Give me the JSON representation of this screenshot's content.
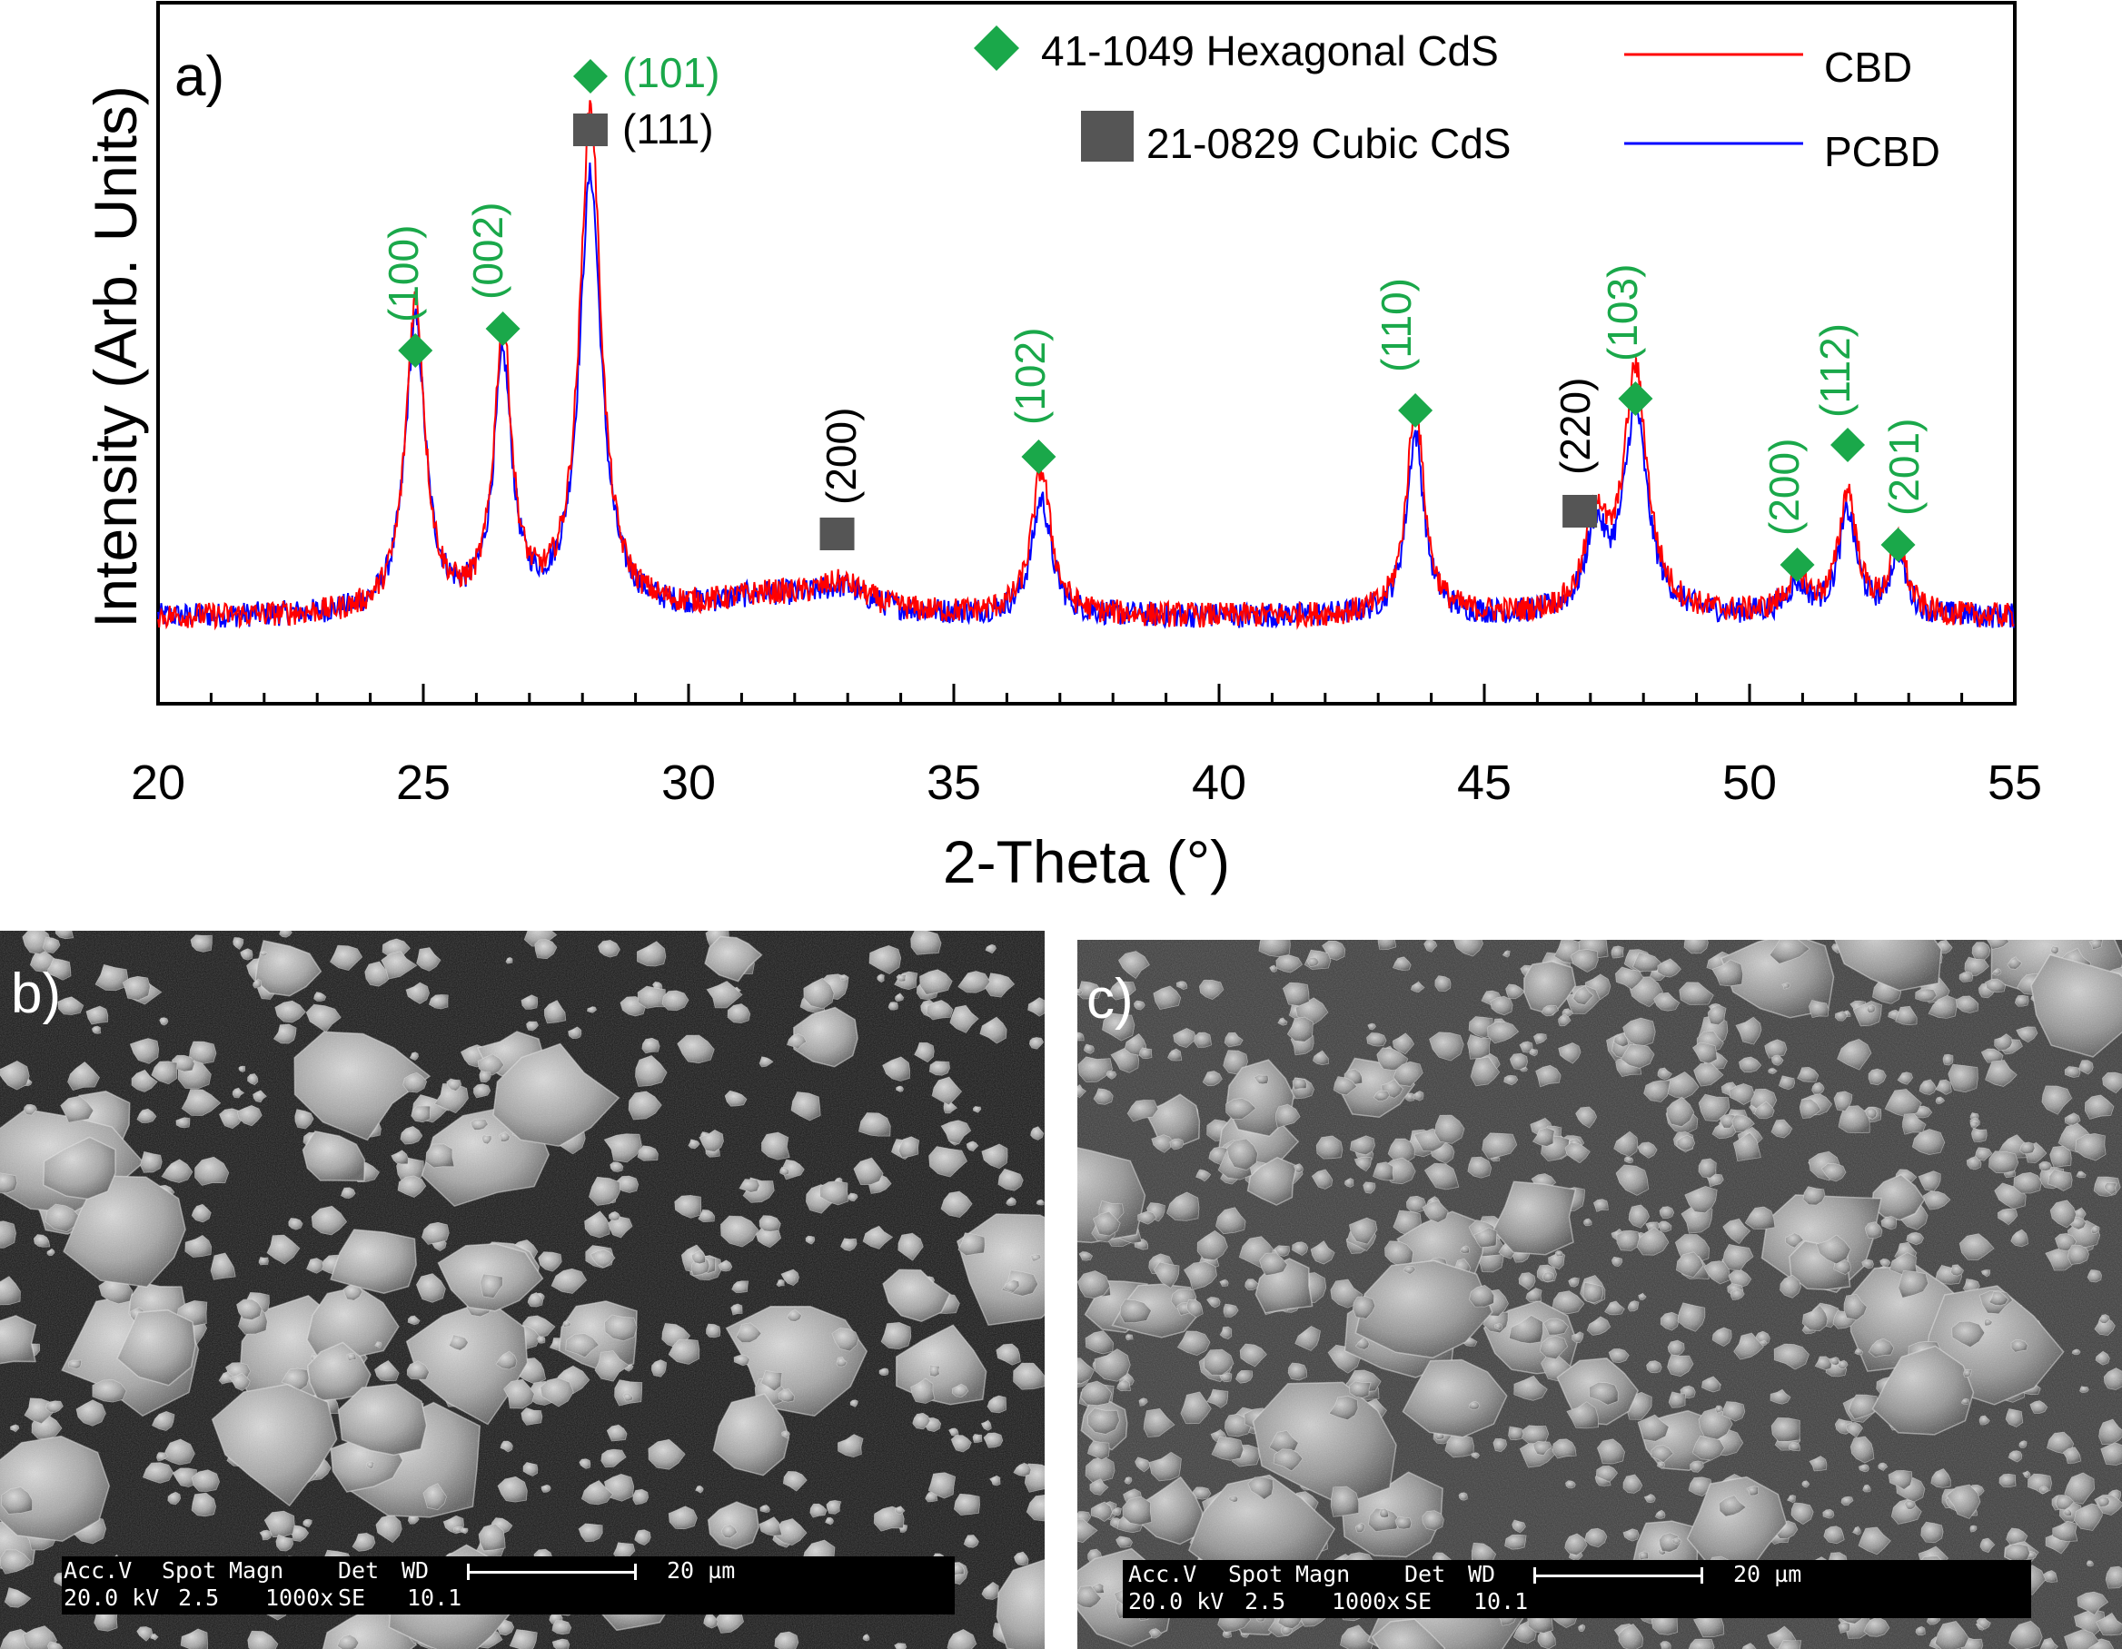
{
  "panel_a": {
    "label": "a)",
    "chart_data": {
      "type": "line",
      "xlabel": "2-Theta (°)",
      "ylabel": "Intensity (Arb. Units)",
      "xlim": [
        20,
        55
      ],
      "x_ticks": [
        "20",
        "25",
        "30",
        "35",
        "40",
        "45",
        "50",
        "55"
      ],
      "baseline": 2.0,
      "noise_amplitude": 0.35,
      "series": [
        {
          "name": "CBD",
          "color": "#ff0000",
          "peaks": [
            {
              "x": 24.85,
              "h": 8.6,
              "w": 0.22
            },
            {
              "x": 26.5,
              "h": 7.7,
              "w": 0.2
            },
            {
              "x": 28.15,
              "h": 13.9,
              "w": 0.24
            },
            {
              "x": 31.5,
              "h": 0.5,
              "w": 1.2
            },
            {
              "x": 32.9,
              "h": 0.7,
              "w": 0.6
            },
            {
              "x": 36.65,
              "h": 4.0,
              "w": 0.22
            },
            {
              "x": 43.7,
              "h": 5.8,
              "w": 0.2
            },
            {
              "x": 47.1,
              "h": 2.6,
              "w": 0.22
            },
            {
              "x": 47.85,
              "h": 6.7,
              "w": 0.27
            },
            {
              "x": 50.9,
              "h": 1.0,
              "w": 0.25
            },
            {
              "x": 51.85,
              "h": 3.4,
              "w": 0.2
            },
            {
              "x": 52.8,
              "h": 2.0,
              "w": 0.18
            }
          ]
        },
        {
          "name": "PCBD",
          "color": "#0000ff",
          "peaks": [
            {
              "x": 24.85,
              "h": 8.0,
              "w": 0.23
            },
            {
              "x": 26.5,
              "h": 6.8,
              "w": 0.21
            },
            {
              "x": 28.15,
              "h": 12.0,
              "w": 0.25
            },
            {
              "x": 31.5,
              "h": 0.5,
              "w": 1.2
            },
            {
              "x": 32.9,
              "h": 0.6,
              "w": 0.6
            },
            {
              "x": 36.65,
              "h": 3.2,
              "w": 0.22
            },
            {
              "x": 43.7,
              "h": 5.0,
              "w": 0.2
            },
            {
              "x": 47.1,
              "h": 2.2,
              "w": 0.22
            },
            {
              "x": 47.85,
              "h": 5.6,
              "w": 0.27
            },
            {
              "x": 50.9,
              "h": 0.8,
              "w": 0.25
            },
            {
              "x": 51.85,
              "h": 2.8,
              "w": 0.2
            },
            {
              "x": 52.8,
              "h": 1.7,
              "w": 0.18
            }
          ]
        }
      ],
      "reference_markers": [
        {
          "phase": "hex",
          "x": 24.85,
          "label": "(100)"
        },
        {
          "phase": "hex",
          "x": 26.5,
          "label": "(002)"
        },
        {
          "phase": "hex",
          "x": 28.15,
          "label": "(101)"
        },
        {
          "phase": "cub",
          "x": 28.15,
          "label": "(111)"
        },
        {
          "phase": "cub",
          "x": 32.8,
          "label": "(200)"
        },
        {
          "phase": "hex",
          "x": 36.6,
          "label": "(102)"
        },
        {
          "phase": "hex",
          "x": 43.7,
          "label": "(110)"
        },
        {
          "phase": "cub",
          "x": 46.8,
          "label": "(220)"
        },
        {
          "phase": "hex",
          "x": 47.85,
          "label": "(103)"
        },
        {
          "phase": "hex",
          "x": 50.9,
          "label": "(200)"
        },
        {
          "phase": "hex",
          "x": 51.85,
          "label": "(112)"
        },
        {
          "phase": "hex",
          "x": 52.8,
          "label": "(201)"
        }
      ],
      "legend": [
        {
          "marker": "hex-diamond",
          "label": "41-1049 Hexagonal CdS"
        },
        {
          "marker": "cub-square",
          "label": "21-0829 Cubic CdS"
        },
        {
          "marker": "line-red",
          "label": "CBD"
        },
        {
          "marker": "line-blue",
          "label": "PCBD"
        }
      ],
      "legend_placement": "top-right",
      "colors": {
        "hexagonal": "#1aa84a",
        "cubic": "#555555",
        "cbd": "#ff0000",
        "pcbd": "#0000ff"
      }
    }
  },
  "panel_b": {
    "label": "b)",
    "databar": {
      "h1": "Acc.V",
      "h2": "Spot",
      "h3": "Magn",
      "h4": "Det",
      "h5": "WD",
      "v1": "20.0 kV",
      "v2": "2.5",
      "v3": "1000x",
      "v4": "SE",
      "v5": "10.1",
      "scale": "20 µm"
    }
  },
  "panel_c": {
    "label": "c)",
    "databar": {
      "h1": "Acc.V",
      "h2": "Spot",
      "h3": "Magn",
      "h4": "Det",
      "h5": "WD",
      "v1": "20.0 kV",
      "v2": "2.5",
      "v3": "1000x",
      "v4": "SE",
      "v5": "10.1",
      "scale": "20 µm"
    }
  }
}
